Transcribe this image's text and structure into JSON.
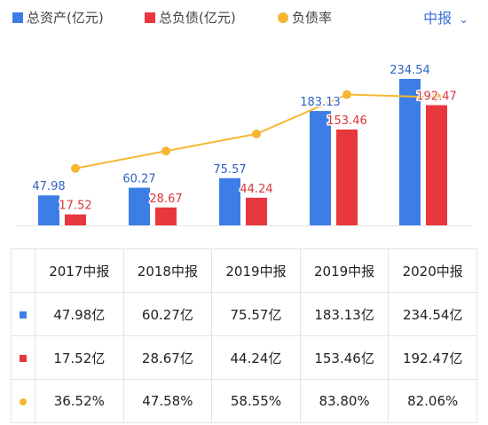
{
  "period_selector": {
    "label": "中报",
    "icon": "chevron-down-icon"
  },
  "chart_data": {
    "type": "bar",
    "categories": [
      "2017中报",
      "2018中报",
      "2019中报",
      "2019中报",
      "2020中报"
    ],
    "series": [
      {
        "name": "总资产(亿元)",
        "type": "bar",
        "color": "#3d7ee6",
        "values": [
          47.98,
          60.27,
          75.57,
          183.13,
          234.54
        ],
        "labels": [
          "47.98",
          "60.27",
          "75.57",
          "183.13",
          "234.54"
        ]
      },
      {
        "name": "总负债(亿元)",
        "type": "bar",
        "color": "#e8383d",
        "values": [
          17.52,
          28.67,
          44.24,
          153.46,
          192.47
        ],
        "labels": [
          "17.52",
          "28.67",
          "44.24",
          "153.46",
          "192.47"
        ]
      },
      {
        "name": "负债率",
        "type": "line",
        "color": "#f5b731",
        "values": [
          36.52,
          47.58,
          58.55,
          83.8,
          82.06
        ]
      }
    ],
    "ylim": [
      0,
      250
    ],
    "line_ylim": [
      0,
      100
    ],
    "legend": "top-left",
    "grid": false
  },
  "table": {
    "headers": [
      "2017中报",
      "2018中报",
      "2019中报",
      "2019中报",
      "2020中报"
    ],
    "rows": [
      {
        "marker": "square",
        "color": "#3d7ee6",
        "cells": [
          "47.98亿",
          "60.27亿",
          "75.57亿",
          "183.13亿",
          "234.54亿"
        ]
      },
      {
        "marker": "square",
        "color": "#e8383d",
        "cells": [
          "17.52亿",
          "28.67亿",
          "44.24亿",
          "153.46亿",
          "192.47亿"
        ]
      },
      {
        "marker": "dot",
        "color": "#f5b731",
        "cells": [
          "36.52%",
          "47.58%",
          "58.55%",
          "83.80%",
          "82.06%"
        ]
      }
    ]
  }
}
